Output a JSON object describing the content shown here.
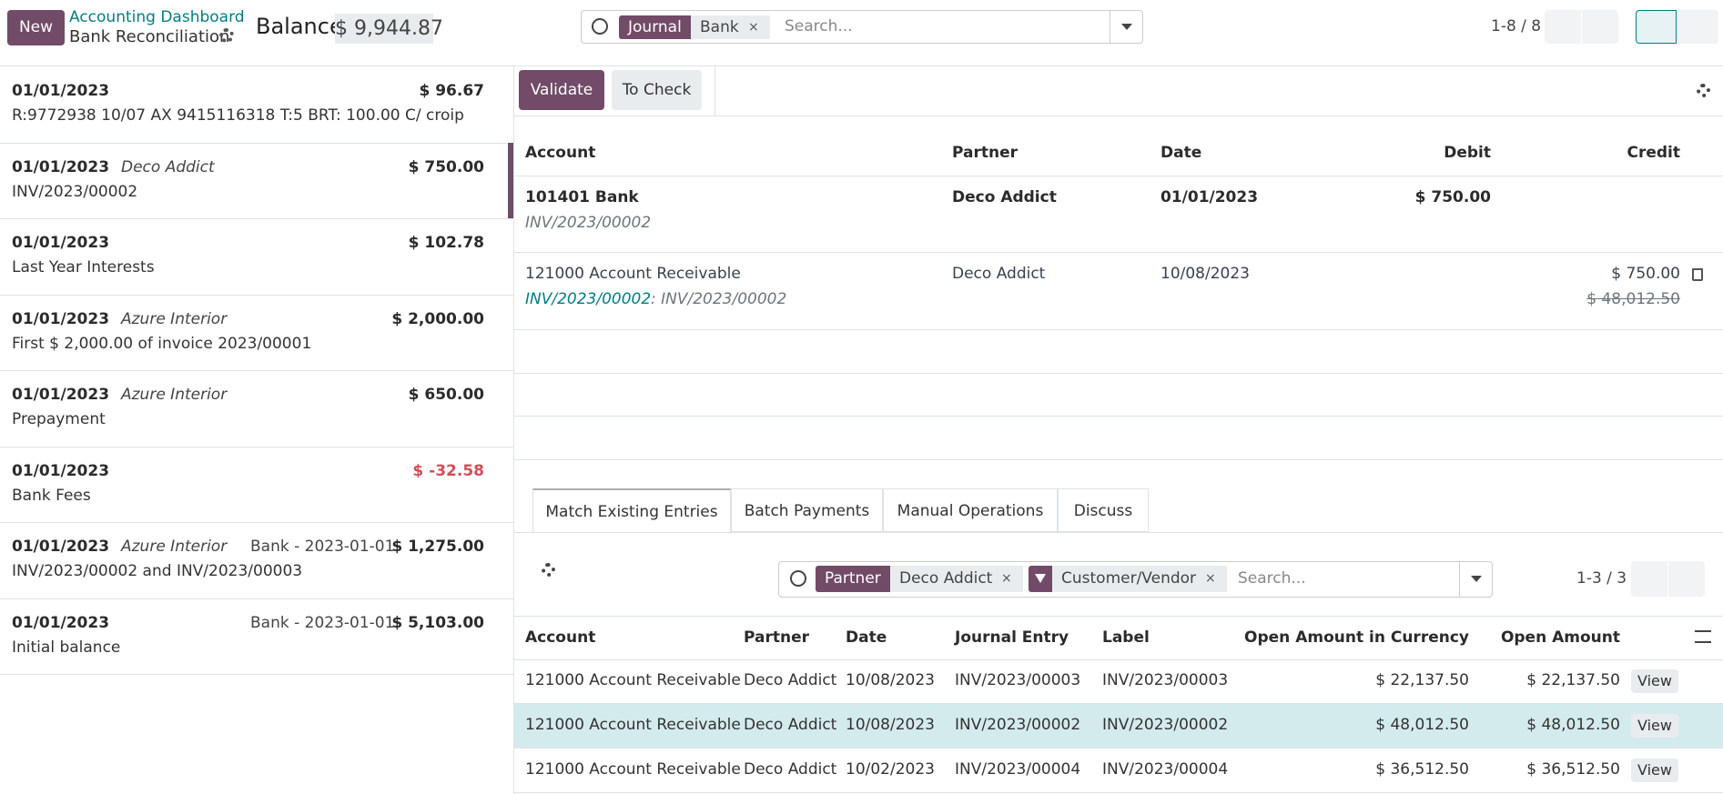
{
  "header": {
    "new_button": "New",
    "breadcrumb": "Accounting Dashboard",
    "subtitle": "Bank Reconciliation",
    "balance_label": "Balance:",
    "balance": "$ 9,944.87",
    "facets": [
      {
        "label": "Journal",
        "value": "Bank"
      }
    ],
    "search_placeholder": "Search...",
    "pager": "1-8 / 8"
  },
  "statements": [
    {
      "date": "01/01/2023",
      "amount": "$ 96.67",
      "label": "R:9772938 10/07 AX 9415116318 T:5 BRT: 100.00 C/ croip"
    },
    {
      "date": "01/01/2023",
      "partner": "Deco Addict",
      "amount": "$ 750.00",
      "label": "INV/2023/00002"
    },
    {
      "date": "01/01/2023",
      "amount": "$ 102.78",
      "label": "Last Year Interests"
    },
    {
      "date": "01/01/2023",
      "partner": "Azure Interior",
      "amount": "$ 2,000.00",
      "label": "First $ 2,000.00 of invoice 2023/00001"
    },
    {
      "date": "01/01/2023",
      "partner": "Azure Interior",
      "amount": "$ 650.00",
      "label": "Prepayment"
    },
    {
      "date": "01/01/2023",
      "amount": "$ -32.58",
      "label": "Bank Fees"
    },
    {
      "date": "01/01/2023",
      "partner": "Azure Interior",
      "ref": "Bank - 2023-01-01",
      "amount": "$ 1,275.00",
      "label": "INV/2023/00002 and INV/2023/00003"
    },
    {
      "date": "01/01/2023",
      "ref": "Bank - 2023-01-01",
      "amount": "$ 5,103.00",
      "label": "Initial balance"
    }
  ],
  "actions": [
    "Validate",
    "To Check"
  ],
  "lines": {
    "headers": [
      "Account",
      "Partner",
      "Date",
      "Debit",
      "Credit"
    ],
    "rows": [
      {
        "account": "101401 Bank",
        "sub": "INV/2023/00002",
        "partner": "Deco Addict",
        "date": "01/01/2023",
        "debit": "$ 750.00"
      },
      {
        "account": "121000 Account Receivable",
        "sub_link": "INV/2023/00002",
        "sub": ": INV/2023/00002",
        "partner": "Deco Addict",
        "date": "10/08/2023",
        "credit": "$ 750.00",
        "credit_struck": "$ 48,012.50"
      }
    ]
  },
  "tabs": [
    "Match Existing Entries",
    "Batch Payments",
    "Manual Operations",
    "Discuss"
  ],
  "match": {
    "facets": [
      {
        "label": "Partner",
        "value": "Deco Addict"
      },
      {
        "value": "Customer/Vendor"
      }
    ],
    "search_placeholder": "Search...",
    "pager": "1-3 / 3",
    "headers": [
      "Account",
      "Partner",
      "Date",
      "Journal Entry",
      "Label",
      "Open Amount in Currency",
      "Open Amount"
    ],
    "rows": [
      [
        "121000 Account Receivable",
        "Deco Addict",
        "10/08/2023",
        "INV/2023/00003",
        "INV/2023/00003",
        "$ 22,137.50",
        "$ 22,137.50",
        "View"
      ],
      [
        "121000 Account Receivable",
        "Deco Addict",
        "10/08/2023",
        "INV/2023/00002",
        "INV/2023/00002",
        "$ 48,012.50",
        "$ 48,012.50",
        "View"
      ],
      [
        "121000 Account Receivable",
        "Deco Addict",
        "10/02/2023",
        "INV/2023/00004",
        "INV/2023/00004",
        "$ 36,512.50",
        "$ 36,512.50",
        "View"
      ]
    ]
  }
}
